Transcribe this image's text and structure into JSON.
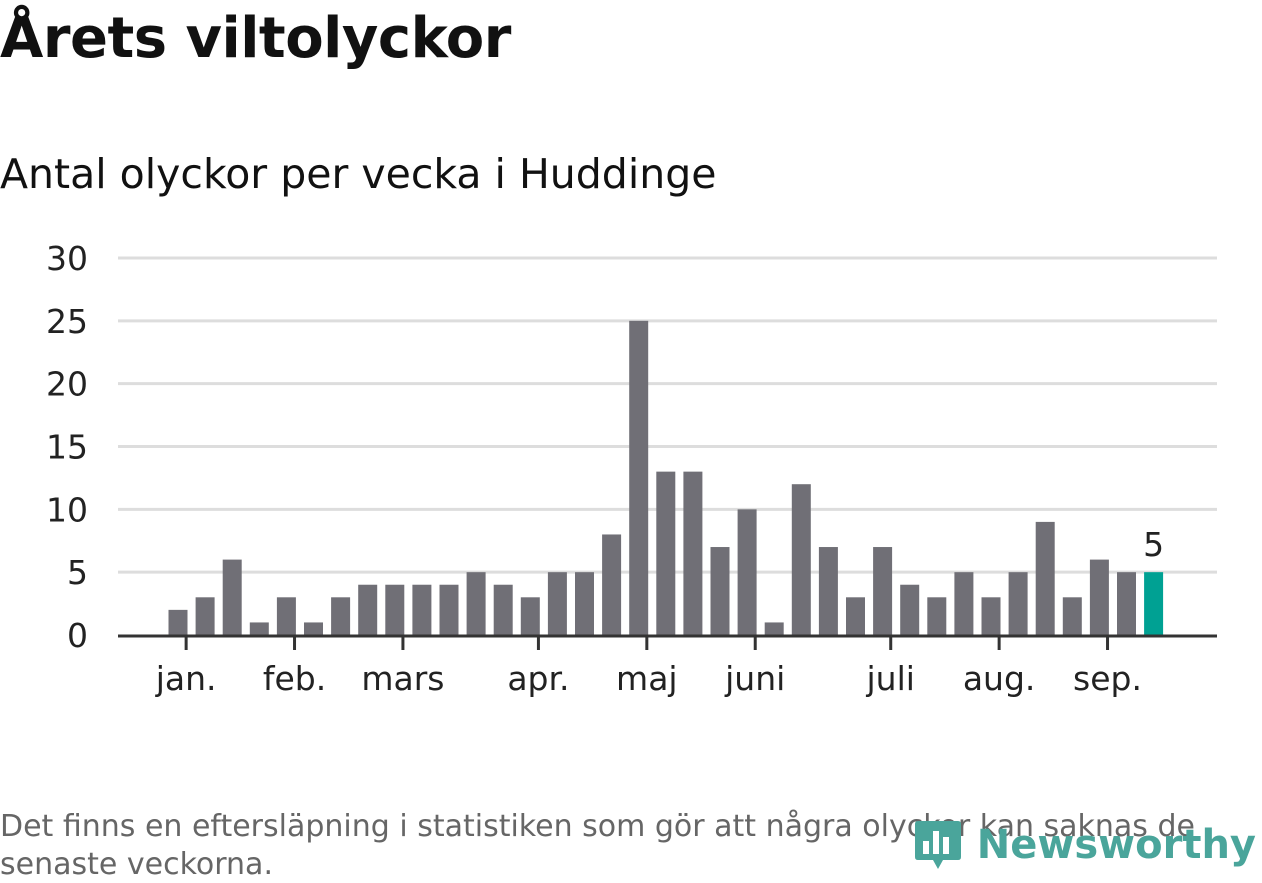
{
  "header": {
    "title": "Årets viltolyckor",
    "subtitle": "Antal olyckor per vecka i Huddinge"
  },
  "footer": {
    "note": "Det finns en eftersläpning i statistiken som gör att några olyckor kan saknas de senaste veckorna.",
    "brand": "Newsworthy"
  },
  "colors": {
    "bar": "#706f76",
    "highlight": "#00a193",
    "grid": "#dddddd",
    "axis": "#333333",
    "brand": "#4aa59b"
  },
  "chart_data": {
    "type": "bar",
    "title": "Årets viltolyckor",
    "subtitle": "Antal olyckor per vecka i Huddinge",
    "xlabel": "",
    "ylabel": "",
    "ylim": [
      0,
      30
    ],
    "yticks": [
      0,
      5,
      10,
      15,
      20,
      25,
      30
    ],
    "grid": true,
    "legend": "none",
    "x_tick_labels": [
      "jan.",
      "feb.",
      "mars",
      "apr.",
      "maj",
      "juni",
      "juli",
      "aug.",
      "sep."
    ],
    "x_tick_bar_index": [
      0.3,
      4.3,
      8.3,
      13.3,
      17.3,
      21.3,
      26.3,
      30.3,
      34.3
    ],
    "values": [
      2,
      3,
      6,
      1,
      3,
      1,
      3,
      4,
      4,
      4,
      4,
      5,
      4,
      3,
      5,
      5,
      8,
      25,
      13,
      13,
      7,
      10,
      1,
      12,
      7,
      3,
      7,
      4,
      3,
      5,
      3,
      5,
      9,
      3,
      6,
      5,
      5
    ],
    "highlight_index": 36,
    "highlight_label": "5"
  }
}
